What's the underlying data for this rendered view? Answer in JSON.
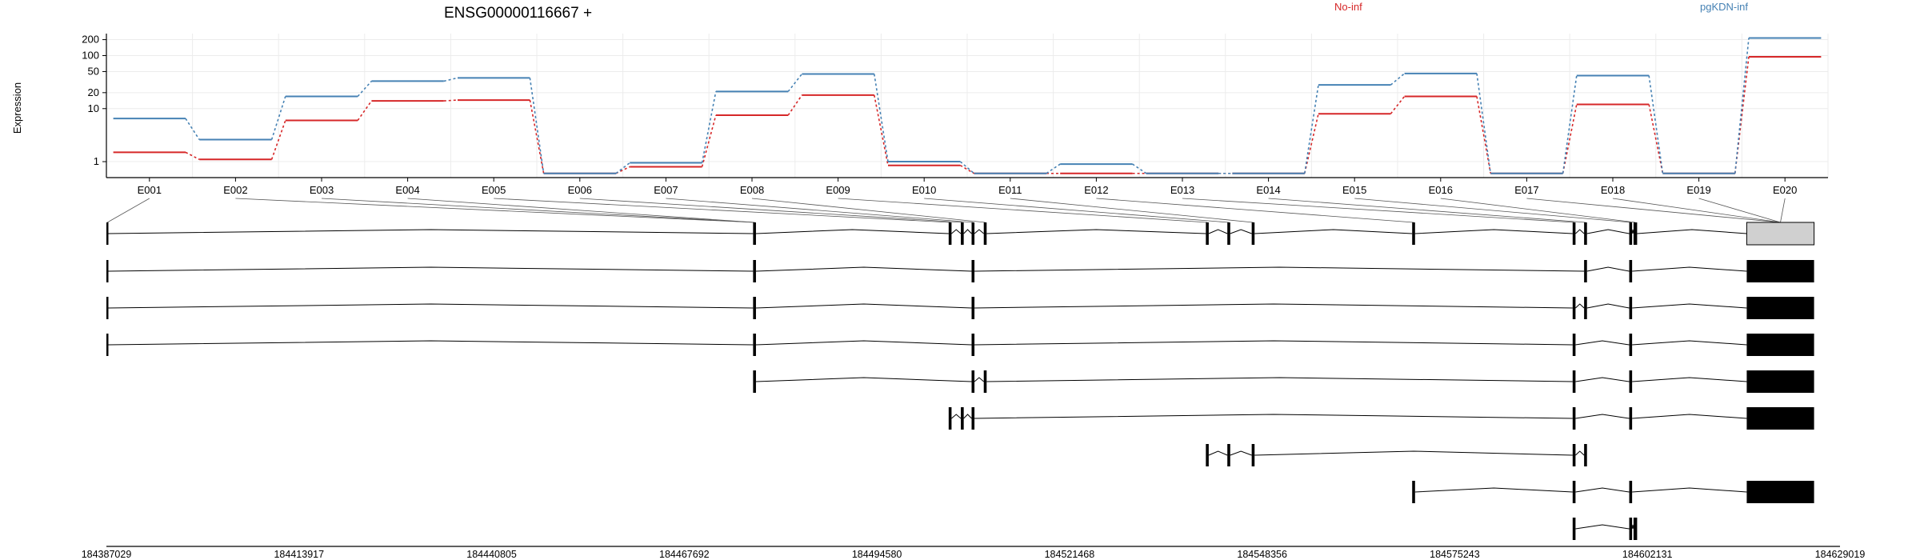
{
  "chart_data": {
    "type": "line",
    "title": "ENSG00000116667 +",
    "ylabel": "Expression",
    "yscale": "log",
    "yticks": [
      "1",
      "10",
      "20",
      "50",
      "100",
      "200"
    ],
    "ylim": [
      0.5,
      260
    ],
    "grid": true,
    "legend_placement": "top-right",
    "categories": [
      "E001",
      "E002",
      "E003",
      "E004",
      "E005",
      "E006",
      "E007",
      "E008",
      "E009",
      "E010",
      "E011",
      "E012",
      "E013",
      "E014",
      "E015",
      "E016",
      "E017",
      "E018",
      "E019",
      "E020"
    ],
    "series": [
      {
        "name": "No-inf",
        "color": "#d62728",
        "values": [
          1.5,
          1.1,
          6,
          14,
          14.5,
          0.6,
          0.8,
          7.5,
          18,
          0.85,
          0.6,
          0.6,
          0.6,
          0.6,
          8,
          17,
          0.6,
          12,
          0.6,
          95
        ]
      },
      {
        "name": "pgKDN-inf",
        "color": "#4682b4",
        "values": [
          6.5,
          2.6,
          17,
          33,
          38,
          0.6,
          0.95,
          21,
          45,
          1.0,
          0.6,
          0.9,
          0.6,
          0.6,
          28,
          46,
          0.6,
          42,
          0.6,
          215
        ]
      }
    ],
    "genomic_ticks": [
      "184387029",
      "184413917",
      "184440805",
      "184467692",
      "184494580",
      "184521468",
      "184548356",
      "184575243",
      "184602131",
      "184629019"
    ],
    "gene_model": {
      "start": 184387029,
      "end": 184629019,
      "exons": [
        [
          184387029,
          184387300
        ],
        [
          184477300,
          184477700
        ],
        [
          184504600,
          184505000
        ],
        [
          184506300,
          184506700
        ],
        [
          184507800,
          184508200
        ],
        [
          184509500,
          184509900
        ],
        [
          184540500,
          184540900
        ],
        [
          184543500,
          184543900
        ],
        [
          184546900,
          184547300
        ],
        [
          184569300,
          184569700
        ],
        [
          184591700,
          184592100
        ],
        [
          184593300,
          184593700
        ],
        [
          184599600,
          184600000
        ],
        [
          184600200,
          184600700
        ],
        [
          184616000,
          184625400
        ]
      ],
      "transcripts": [
        {
          "exons": [
            0,
            1,
            4,
            11,
            12,
            14
          ],
          "last_filled": true
        },
        {
          "exons": [
            0,
            1,
            4,
            10,
            11,
            12,
            14
          ],
          "last_filled": true
        },
        {
          "exons": [
            0,
            1,
            4,
            10,
            12,
            14
          ],
          "last_filled": true
        },
        {
          "exons": [
            1,
            4,
            5,
            10,
            12,
            14
          ],
          "last_filled": true
        },
        {
          "exons": [
            2,
            3,
            4,
            10,
            12,
            14
          ],
          "last_filled": true
        },
        {
          "exons": [
            6,
            7,
            8,
            10,
            11
          ],
          "last_filled": false
        },
        {
          "exons": [
            9,
            10,
            12,
            14
          ],
          "last_filled": true
        },
        {
          "exons": [
            10,
            12,
            13
          ],
          "last_filled": false
        }
      ]
    }
  }
}
